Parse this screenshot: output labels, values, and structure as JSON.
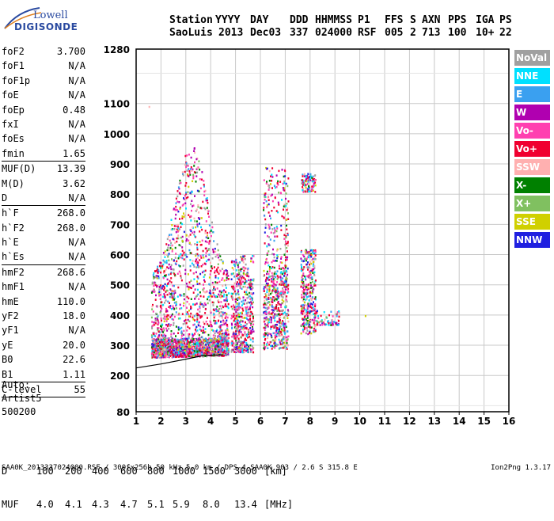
{
  "logo": {
    "line1": "Lowell",
    "line2": "DIGISONDE"
  },
  "header": {
    "labels": [
      "Station",
      "YYYY",
      "DAY",
      "DDD",
      "HHMMSS",
      "P1",
      "FFS",
      "S",
      "AXN",
      "PPS",
      "IGA",
      "PS"
    ],
    "values": [
      "SaoLuis",
      "2013",
      "Dec03",
      "337",
      "024000",
      "RSF",
      "005",
      "2",
      "713",
      "100",
      "10+",
      "22"
    ]
  },
  "parameters": [
    {
      "name": "foF2",
      "value": "3.700"
    },
    {
      "name": "foF1",
      "value": "N/A"
    },
    {
      "name": "foF1p",
      "value": "N/A"
    },
    {
      "name": "foE",
      "value": "N/A"
    },
    {
      "name": "foEp",
      "value": "0.48"
    },
    {
      "name": "fxI",
      "value": "N/A"
    },
    {
      "name": "foEs",
      "value": "N/A"
    },
    {
      "name": "fmin",
      "value": "1.65",
      "sep": true
    },
    {
      "name": "MUF(D)",
      "value": "13.39"
    },
    {
      "name": "M(D)",
      "value": "3.62"
    },
    {
      "name": "D",
      "value": "N/A",
      "sep": true
    },
    {
      "name": "h`F",
      "value": "268.0"
    },
    {
      "name": "h`F2",
      "value": "268.0"
    },
    {
      "name": "h`E",
      "value": "N/A"
    },
    {
      "name": "h`Es",
      "value": "N/A",
      "sep": true
    },
    {
      "name": "hmF2",
      "value": "268.6"
    },
    {
      "name": "hmF1",
      "value": "N/A"
    },
    {
      "name": "hmE",
      "value": "110.0"
    },
    {
      "name": "yF2",
      "value": "18.0"
    },
    {
      "name": "yF1",
      "value": "N/A"
    },
    {
      "name": "yE",
      "value": "20.0"
    },
    {
      "name": "B0",
      "value": "22.6"
    },
    {
      "name": "B1",
      "value": "1.11",
      "sep": true
    },
    {
      "name": "C-level",
      "value": "55",
      "sep": true
    }
  ],
  "auto": {
    "l1": "Auto:",
    "l2": "Artist5",
    "l3": "500200"
  },
  "legend": [
    {
      "label": "NoVal",
      "color": "#a0a0a0"
    },
    {
      "label": "NNE",
      "color": "#00e0ff"
    },
    {
      "label": "E",
      "color": "#3aa0f0"
    },
    {
      "label": "W",
      "color": "#b000b0"
    },
    {
      "label": "Vo-",
      "color": "#ff40b0"
    },
    {
      "label": "Vo+",
      "color": "#f00030"
    },
    {
      "label": "SSW",
      "color": "#ffb0b0"
    },
    {
      "label": "X-",
      "color": "#008000"
    },
    {
      "label": "X+",
      "color": "#80c060"
    },
    {
      "label": "SSE",
      "color": "#d0d000"
    },
    {
      "label": "NNW",
      "color": "#2020e0"
    }
  ],
  "muf_table": {
    "d_label": "D",
    "d_values": [
      "100",
      "200",
      "400",
      "600",
      "800",
      "1000",
      "1500",
      "3000",
      "[km]"
    ],
    "muf_label": "MUF",
    "muf_values": [
      "4.0",
      "4.1",
      "4.3",
      "4.7",
      "5.1",
      "5.9",
      "8.0",
      "13.4",
      "[MHz]"
    ]
  },
  "footer": {
    "left": "SAA0K_2013337024000.RSF / 300fx256h 50 kHz 5.0 km / DPS-4 SAA0K 903 / 2.6 S 315.8 E",
    "right": "Ion2Png 1.3.17"
  },
  "chart_data": {
    "type": "scatter",
    "x_ticks": [
      1,
      2,
      3,
      4,
      5,
      6,
      7,
      8,
      9,
      10,
      11,
      12,
      13,
      14,
      15,
      16
    ],
    "y_ticks": [
      80,
      200,
      300,
      400,
      500,
      600,
      700,
      800,
      900,
      1000,
      1100,
      1280
    ],
    "xlim": [
      1,
      16
    ],
    "ylim": [
      80,
      1280
    ],
    "grid": true,
    "clusters": [
      {
        "f_range": [
          1.6,
          4.7
        ],
        "h_range": [
          260,
          1000
        ],
        "note": "dense echo band"
      },
      {
        "f_range": [
          4.8,
          5.7
        ],
        "h_range": [
          280,
          600
        ]
      },
      {
        "f_range": [
          6.1,
          7.1
        ],
        "h_range": [
          290,
          890
        ]
      },
      {
        "f_range": [
          7.6,
          8.2
        ],
        "h_range": [
          340,
          870
        ]
      },
      {
        "f_range": [
          8.2,
          9.2
        ],
        "h_range": [
          370,
          420
        ]
      }
    ],
    "trace": {
      "name": "",
      "points": [
        [
          1,
          225
        ],
        [
          2,
          238
        ],
        [
          3,
          254
        ],
        [
          3.7,
          266
        ],
        [
          4.5,
          268
        ]
      ]
    }
  }
}
